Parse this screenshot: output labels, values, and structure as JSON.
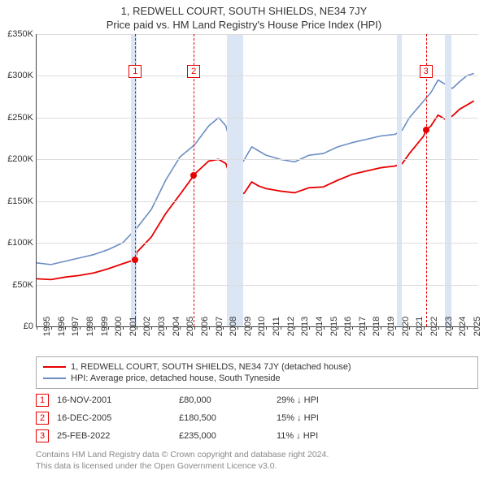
{
  "title": "1, REDWELL COURT, SOUTH SHIELDS, NE34 7JY",
  "subtitle": "Price paid vs. HM Land Registry's House Price Index (HPI)",
  "chart": {
    "type": "line",
    "background_color": "#ffffff",
    "grid_color": "#dddddd",
    "axis_color": "#444444",
    "label_fontsize": 11,
    "label_color": "#333333",
    "xlim": [
      1995,
      2025.8
    ],
    "ylim": [
      0,
      350000
    ],
    "ytick_step": 50000,
    "yticks": [
      "£0",
      "£50K",
      "£100K",
      "£150K",
      "£200K",
      "£250K",
      "£300K",
      "£350K"
    ],
    "xticks": [
      1995,
      1996,
      1997,
      1998,
      1999,
      2000,
      2001,
      2002,
      2003,
      2004,
      2005,
      2006,
      2007,
      2008,
      2009,
      2010,
      2011,
      2012,
      2013,
      2014,
      2015,
      2016,
      2017,
      2018,
      2019,
      2020,
      2021,
      2022,
      2023,
      2024,
      2025
    ],
    "vbands": [
      {
        "from": 2001.6,
        "to": 2001.95,
        "color": "#dbe5f4"
      },
      {
        "from": 2008.3,
        "to": 2009.4,
        "color": "#dbe5f4"
      },
      {
        "from": 2020.1,
        "to": 2020.45,
        "color": "#dbe5f4"
      },
      {
        "from": 2023.5,
        "to": 2023.95,
        "color": "#dbe5f4"
      }
    ],
    "markers": [
      {
        "num": "1",
        "x": 2001.88,
        "box_top": 38
      },
      {
        "num": "2",
        "x": 2005.96,
        "box_top": 38
      },
      {
        "num": "3",
        "x": 2022.15,
        "box_top": 38
      }
    ],
    "series": [
      {
        "name": "hpi",
        "label": "HPI: Average price, detached house, South Tyneside",
        "color": "#6b8dc4",
        "line_width": 1.6,
        "points": [
          [
            1995,
            76000
          ],
          [
            1996,
            74000
          ],
          [
            1997,
            78000
          ],
          [
            1998,
            82000
          ],
          [
            1999,
            86000
          ],
          [
            2000,
            92000
          ],
          [
            2001,
            100000
          ],
          [
            2002,
            118000
          ],
          [
            2003,
            140000
          ],
          [
            2004,
            175000
          ],
          [
            2005,
            203000
          ],
          [
            2006,
            217000
          ],
          [
            2007,
            240000
          ],
          [
            2007.7,
            250000
          ],
          [
            2008.2,
            240000
          ],
          [
            2008.6,
            215000
          ],
          [
            2009,
            188000
          ],
          [
            2009.5,
            200000
          ],
          [
            2010,
            215000
          ],
          [
            2010.5,
            210000
          ],
          [
            2011,
            205000
          ],
          [
            2012,
            200000
          ],
          [
            2013,
            197000
          ],
          [
            2014,
            205000
          ],
          [
            2015,
            207000
          ],
          [
            2016,
            215000
          ],
          [
            2017,
            220000
          ],
          [
            2018,
            224000
          ],
          [
            2019,
            228000
          ],
          [
            2020,
            230000
          ],
          [
            2020.5,
            235000
          ],
          [
            2021,
            250000
          ],
          [
            2022,
            270000
          ],
          [
            2022.5,
            280000
          ],
          [
            2023,
            295000
          ],
          [
            2023.5,
            290000
          ],
          [
            2024,
            285000
          ],
          [
            2024.5,
            293000
          ],
          [
            2025,
            300000
          ],
          [
            2025.5,
            303000
          ]
        ]
      },
      {
        "name": "property",
        "label": "1, REDWELL COURT, SOUTH SHIELDS, NE34 7JY (detached house)",
        "color": "#e80000",
        "line_width": 1.8,
        "points": [
          [
            1995,
            57000
          ],
          [
            1996,
            56000
          ],
          [
            1997,
            59000
          ],
          [
            1998,
            61000
          ],
          [
            1999,
            64000
          ],
          [
            2000,
            69000
          ],
          [
            2001,
            75000
          ],
          [
            2001.88,
            80000
          ],
          [
            2002,
            89000
          ],
          [
            2003,
            107000
          ],
          [
            2004,
            135000
          ],
          [
            2005,
            158000
          ],
          [
            2005.96,
            180500
          ],
          [
            2006,
            182000
          ],
          [
            2007,
            198000
          ],
          [
            2007.7,
            200000
          ],
          [
            2008.2,
            195000
          ],
          [
            2008.6,
            175000
          ],
          [
            2009,
            155000
          ],
          [
            2009.5,
            160000
          ],
          [
            2010,
            173000
          ],
          [
            2010.5,
            168000
          ],
          [
            2011,
            165000
          ],
          [
            2012,
            162000
          ],
          [
            2013,
            160000
          ],
          [
            2014,
            166000
          ],
          [
            2015,
            167000
          ],
          [
            2016,
            175000
          ],
          [
            2017,
            182000
          ],
          [
            2018,
            186000
          ],
          [
            2019,
            190000
          ],
          [
            2020,
            192000
          ],
          [
            2020.5,
            195000
          ],
          [
            2021,
            207000
          ],
          [
            2022,
            228000
          ],
          [
            2022.15,
            235000
          ],
          [
            2022.5,
            240000
          ],
          [
            2023,
            253000
          ],
          [
            2023.5,
            248000
          ],
          [
            2024,
            252000
          ],
          [
            2024.5,
            260000
          ],
          [
            2025,
            265000
          ],
          [
            2025.5,
            270000
          ]
        ]
      }
    ],
    "sale_points": [
      {
        "x": 2001.88,
        "y": 80000,
        "color": "#e80000"
      },
      {
        "x": 2005.96,
        "y": 180500,
        "color": "#e80000"
      },
      {
        "x": 2022.15,
        "y": 235000,
        "color": "#e80000"
      }
    ]
  },
  "legend": {
    "border_color": "#aaaaaa",
    "rows": [
      {
        "color": "#e80000",
        "label": "1, REDWELL COURT, SOUTH SHIELDS, NE34 7JY (detached house)"
      },
      {
        "color": "#6b8dc4",
        "label": "HPI: Average price, detached house, South Tyneside"
      }
    ]
  },
  "events": [
    {
      "num": "1",
      "date": "16-NOV-2001",
      "price": "£80,000",
      "delta": "29% ↓ HPI"
    },
    {
      "num": "2",
      "date": "16-DEC-2005",
      "price": "£180,500",
      "delta": "15% ↓ HPI"
    },
    {
      "num": "3",
      "date": "25-FEB-2022",
      "price": "£235,000",
      "delta": "11% ↓ HPI"
    }
  ],
  "footer": {
    "line1": "Contains HM Land Registry data © Crown copyright and database right 2024.",
    "line2": "This data is licensed under the Open Government Licence v3.0."
  }
}
